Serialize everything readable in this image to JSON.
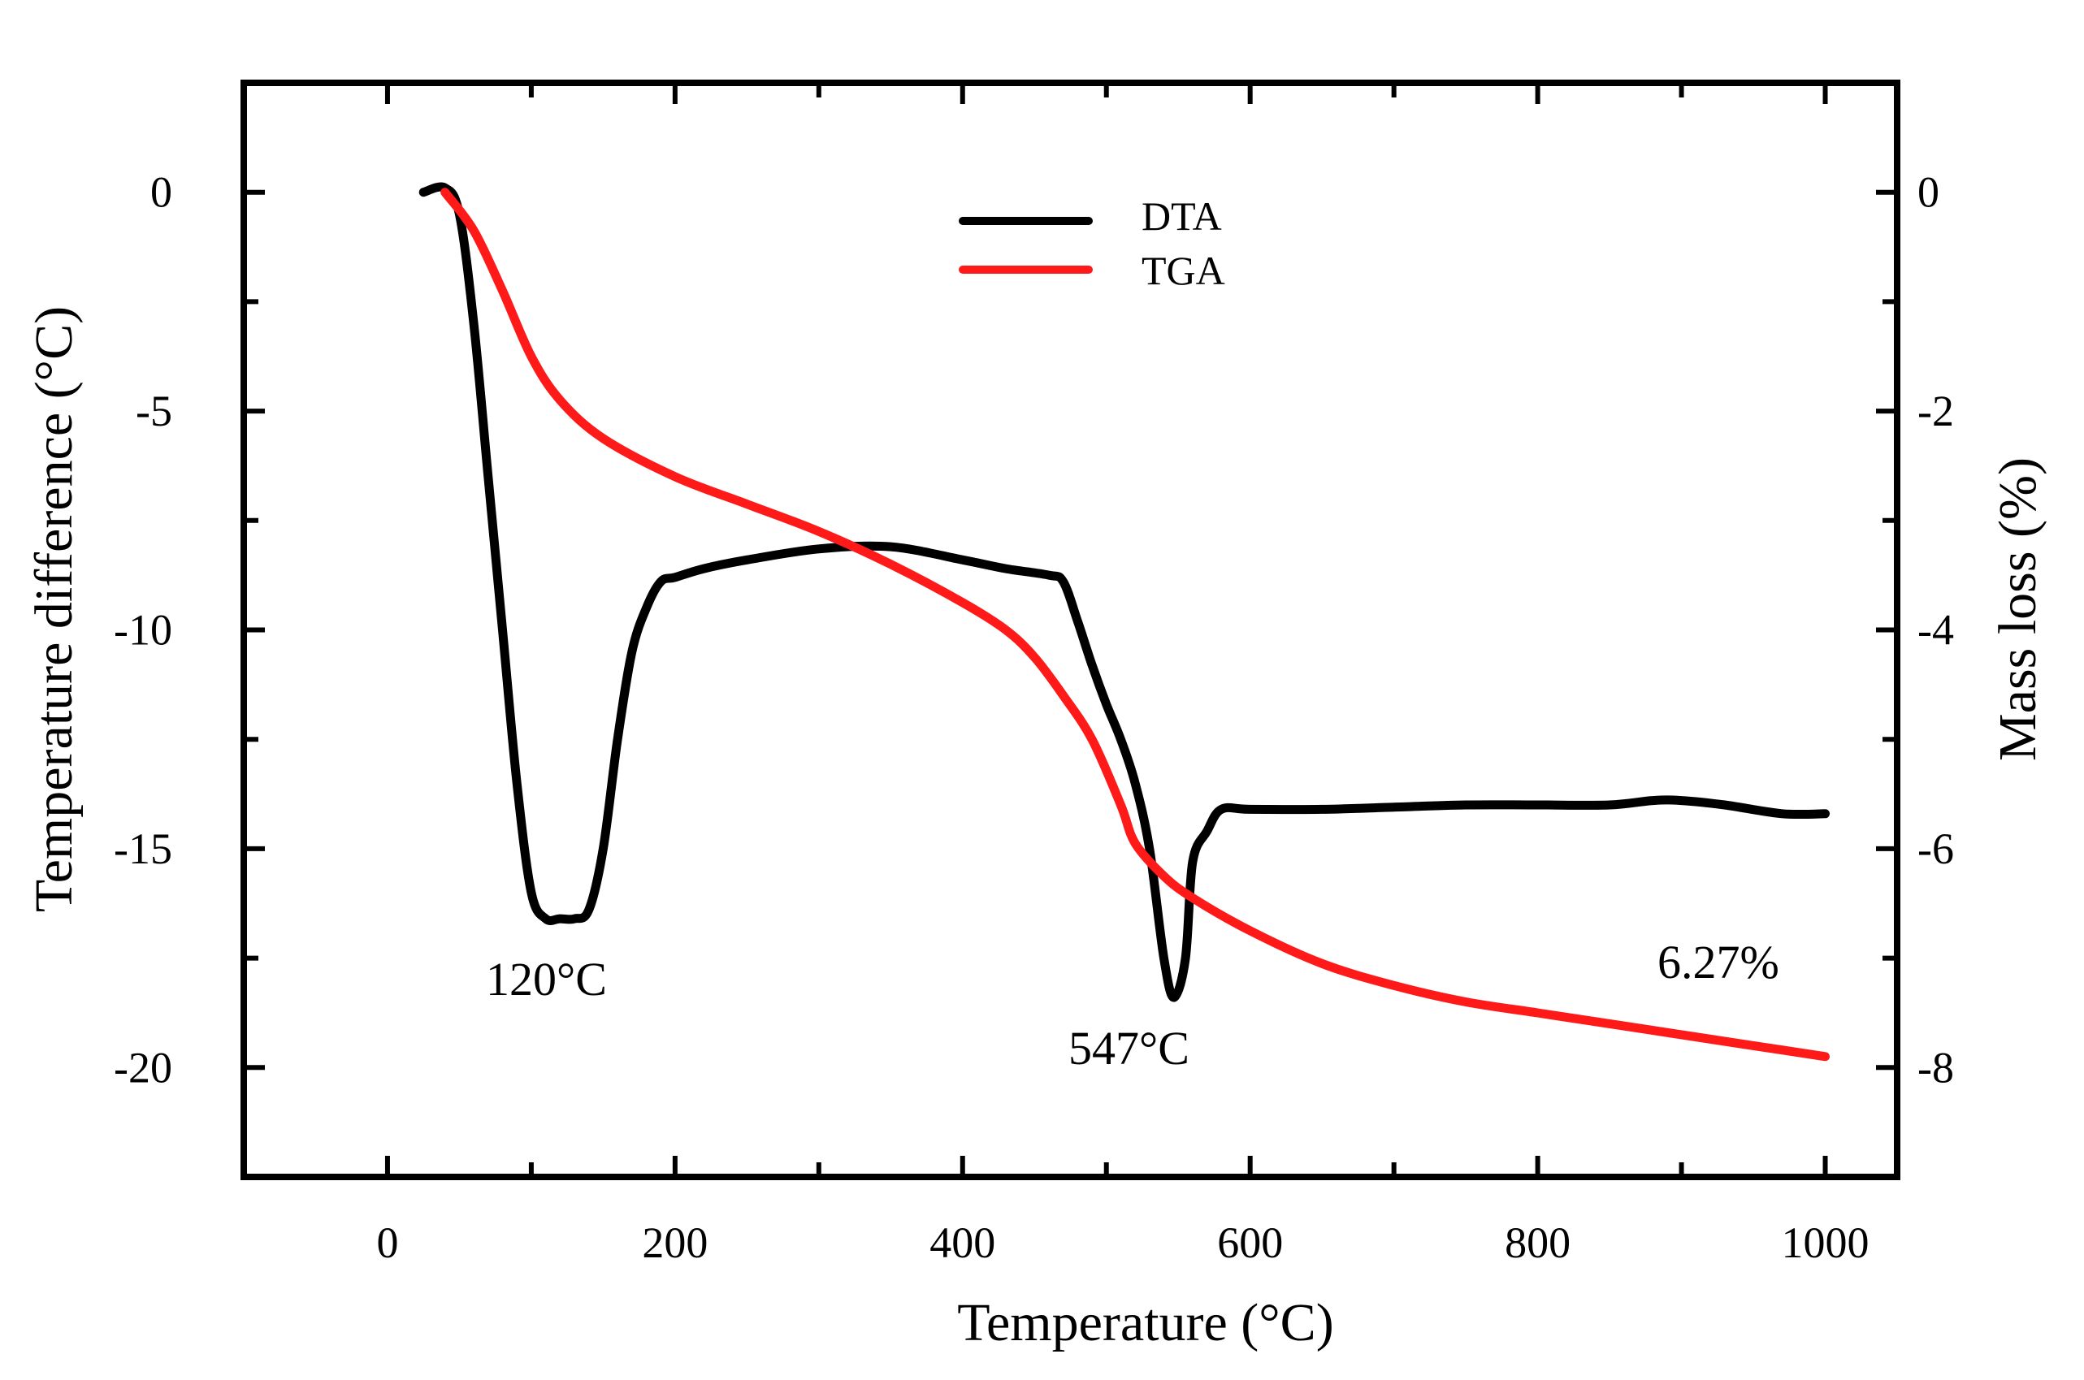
{
  "chart_data": {
    "type": "line",
    "xlabel": "Temperature (°C)",
    "ylabel_left": "Temperature difference (°C)",
    "ylabel_right": "Mass loss (%)",
    "xlim": [
      -100,
      1050
    ],
    "ylim_left": [
      -22.5,
      2.5
    ],
    "ylim_right": [
      -9,
      1
    ],
    "x_ticks": [
      0,
      200,
      400,
      600,
      800,
      1000
    ],
    "y_left_ticks": [
      0,
      -5,
      -10,
      -15,
      -20
    ],
    "y_right_ticks": [
      0,
      -2,
      -4,
      -6,
      -8
    ],
    "grid": false,
    "legend_position": "top-center",
    "series": [
      {
        "name": "DTA",
        "axis": "left",
        "color": "#000000",
        "x": [
          25,
          40,
          50,
          60,
          70,
          80,
          90,
          100,
          110,
          120,
          130,
          140,
          150,
          160,
          170,
          180,
          190,
          200,
          220,
          250,
          300,
          350,
          400,
          430,
          460,
          470,
          480,
          490,
          500,
          510,
          520,
          530,
          540,
          547,
          555,
          560,
          570,
          580,
          600,
          650,
          700,
          750,
          800,
          850,
          880,
          900,
          930,
          970,
          1000
        ],
        "y": [
          0,
          0.1,
          -0.5,
          -3,
          -6.5,
          -10,
          -13.5,
          -16,
          -16.6,
          -16.6,
          -16.6,
          -16.4,
          -15,
          -12.5,
          -10.5,
          -9.5,
          -8.9,
          -8.8,
          -8.6,
          -8.4,
          -8.15,
          -8.1,
          -8.4,
          -8.6,
          -8.75,
          -8.9,
          -9.8,
          -10.8,
          -11.7,
          -12.5,
          -13.5,
          -15,
          -17.5,
          -18.4,
          -17.5,
          -15.3,
          -14.6,
          -14.1,
          -14.1,
          -14.1,
          -14.05,
          -14.0,
          -14.0,
          -14.0,
          -13.9,
          -13.9,
          -14.0,
          -14.2,
          -14.2
        ]
      },
      {
        "name": "TGA",
        "axis": "right",
        "color": "#ff1a1a",
        "x": [
          40,
          60,
          80,
          100,
          120,
          150,
          200,
          250,
          300,
          350,
          400,
          430,
          450,
          470,
          490,
          510,
          520,
          540,
          560,
          600,
          650,
          700,
          750,
          800,
          850,
          900,
          950,
          1000
        ],
        "y": [
          0,
          -0.35,
          -0.9,
          -1.5,
          -1.9,
          -2.25,
          -2.6,
          -2.85,
          -3.1,
          -3.4,
          -3.75,
          -4.0,
          -4.25,
          -4.6,
          -5.0,
          -5.6,
          -5.95,
          -6.25,
          -6.45,
          -6.75,
          -7.05,
          -7.25,
          -7.4,
          -7.5,
          -7.6,
          -7.7,
          -7.8,
          -7.9
        ]
      }
    ],
    "annotations": [
      {
        "text": "120°C"
      },
      {
        "text": "547°C"
      },
      {
        "text": "6.27%"
      }
    ]
  }
}
